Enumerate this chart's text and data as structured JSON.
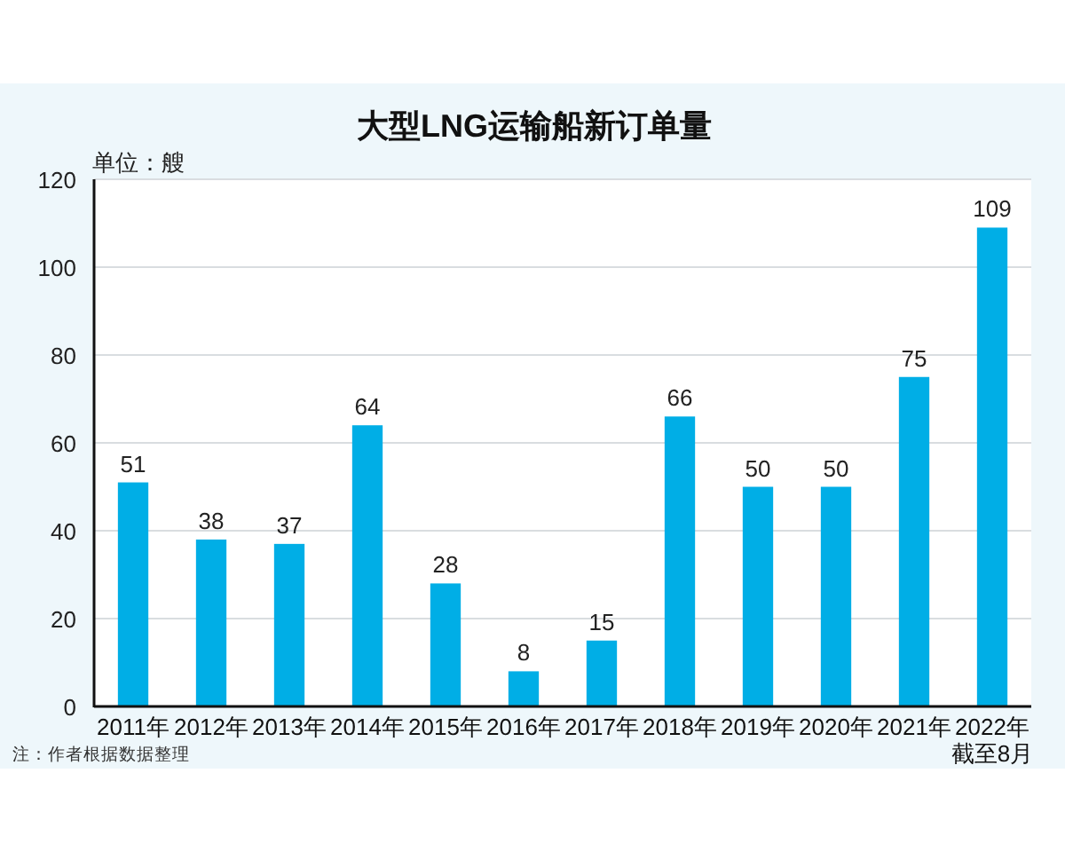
{
  "chart_data": {
    "type": "bar",
    "title": "大型LNG运输船新订单量",
    "ylabel": "单位：艘",
    "categories": [
      "2011年",
      "2012年",
      "2013年",
      "2014年",
      "2015年",
      "2016年",
      "2017年",
      "2018年",
      "2019年",
      "2020年",
      "2021年",
      "2022年截至8月"
    ],
    "values": [
      51,
      38,
      37,
      64,
      28,
      8,
      15,
      66,
      50,
      50,
      75,
      109
    ],
    "color": "#00aee6",
    "ylim": [
      0,
      120
    ],
    "yticks": [
      0,
      20,
      40,
      60,
      80,
      100,
      120
    ],
    "grid": "y",
    "data_labels": true,
    "annotations": [
      "注：作者根据数据整理"
    ]
  }
}
